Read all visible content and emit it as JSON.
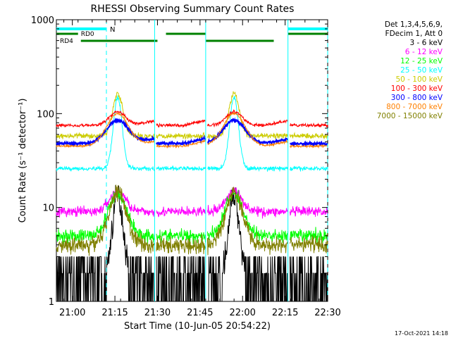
{
  "chart_data": {
    "type": "line",
    "title": "RHESSI Observing Summary Count Rates",
    "xlabel": "Start Time (10-Jun-05 20:54:22)",
    "ylabel": "Count Rate (s⁻¹ detector⁻¹)",
    "y_scale": "log",
    "ylim": [
      1,
      1000
    ],
    "y_ticks": [
      {
        "v": 1,
        "label": "1"
      },
      {
        "v": 10,
        "label": "10"
      },
      {
        "v": 100,
        "label": "100"
      },
      {
        "v": 1000,
        "label": "1000"
      }
    ],
    "xlim": [
      "20:54:22",
      "22:30:00"
    ],
    "x_ticks": [
      "21:00",
      "21:15",
      "21:30",
      "21:45",
      "22:00",
      "22:15",
      "22:30"
    ],
    "legend_header": [
      "Det 1,3,4,5,6,9,",
      "FDecim 1, Att 0"
    ],
    "footer_date": "17-Oct-2021 14:18",
    "flags": [
      {
        "label": "N",
        "color": "#00ffff"
      },
      {
        "label": "RD0",
        "color": "#008000"
      },
      {
        "label": "RD4",
        "color": "#008000"
      }
    ],
    "night_segments": [
      [
        "20:54:22",
        "21:12:00"
      ],
      [
        "22:16:00",
        "22:30:00"
      ]
    ],
    "rd0_segments": [
      [
        "20:54:22",
        "21:02:00"
      ],
      [
        "21:33:00",
        "21:47:00"
      ],
      [
        "22:16:00",
        "22:30:00"
      ]
    ],
    "rd4_segments": [
      [
        "21:03:00",
        "21:30:00"
      ],
      [
        "21:47:00",
        "22:11:00"
      ]
    ],
    "dashed_lines": [
      "21:12:00",
      "22:30:00"
    ],
    "data_gaps": [
      [
        "21:29:00",
        "21:29:30"
      ],
      [
        "21:47:00",
        "21:47:30"
      ],
      [
        "22:16:00",
        "22:16:30"
      ]
    ],
    "orbit_peaks": [
      "21:16:00",
      "21:57:00"
    ],
    "series": [
      {
        "name": "3 - 6 keV",
        "color": "#000000",
        "base": 1.5,
        "peak": 13
      },
      {
        "name": "6 - 12 keV",
        "color": "#ff00ff",
        "base": 9,
        "peak": 15
      },
      {
        "name": "12 - 25 keV",
        "color": "#00ff00",
        "base": 5,
        "peak": 14
      },
      {
        "name": "25 - 50 keV",
        "color": "#00ffff",
        "base": 26,
        "peak": 150
      },
      {
        "name": "50 - 100 keV",
        "color": "#cccc00",
        "base": 58,
        "peak": 165
      },
      {
        "name": "100 - 300 keV",
        "color": "#ff0000",
        "base": 75,
        "peak": 105
      },
      {
        "name": "300 - 800 keV",
        "color": "#0000ff",
        "base": 48,
        "peak": 85
      },
      {
        "name": "800 - 7000 keV",
        "color": "#ff8000",
        "base": 45,
        "peak": 100
      },
      {
        "name": "7000 - 15000 keV",
        "color": "#808000",
        "base": 4,
        "peak": 15
      }
    ]
  }
}
